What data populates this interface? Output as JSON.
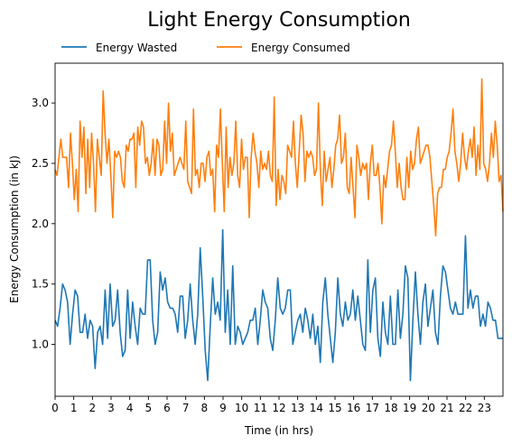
{
  "chart_data": {
    "type": "line",
    "title": "Light Energy Consumption",
    "xlabel": "Time (in hrs)",
    "ylabel": "Energy Consumption (in kJ)",
    "xlim": [
      0,
      24
    ],
    "ylim": [
      0.57,
      3.33
    ],
    "x_ticks": [
      0,
      1,
      2,
      3,
      4,
      5,
      6,
      7,
      8,
      9,
      10,
      11,
      12,
      13,
      14,
      15,
      16,
      17,
      18,
      19,
      20,
      21,
      22,
      23
    ],
    "y_ticks": [
      1.0,
      1.5,
      2.0,
      2.5,
      3.0
    ],
    "y_tick_labels": [
      "1.0",
      "1.5",
      "2.0",
      "2.5",
      "3.0"
    ],
    "grid": false,
    "legend_position": "top-left above plot",
    "series": [
      {
        "name": "Energy Wasted",
        "color": "#1f77b4",
        "values": [
          1.2,
          1.15,
          1.3,
          1.5,
          1.45,
          1.35,
          1.0,
          1.25,
          1.45,
          1.4,
          1.1,
          1.1,
          1.25,
          1.05,
          1.2,
          1.15,
          0.8,
          1.1,
          1.15,
          1.0,
          1.45,
          1.05,
          1.5,
          1.15,
          1.2,
          1.45,
          1.1,
          0.9,
          0.95,
          1.45,
          1.05,
          1.35,
          1.15,
          1.0,
          1.3,
          1.25,
          1.25,
          1.7,
          1.7,
          1.2,
          1.0,
          1.1,
          1.6,
          1.45,
          1.55,
          1.35,
          1.3,
          1.3,
          1.25,
          1.1,
          1.4,
          1.4,
          1.05,
          1.2,
          1.5,
          1.2,
          1.0,
          1.25,
          1.8,
          1.4,
          0.95,
          0.7,
          1.15,
          1.55,
          1.25,
          1.35,
          1.2,
          1.95,
          1.1,
          1.45,
          1.0,
          1.65,
          1.0,
          1.15,
          1.1,
          1.0,
          1.05,
          1.1,
          1.2,
          1.2,
          1.3,
          1.0,
          1.2,
          1.45,
          1.35,
          1.3,
          1.05,
          0.95,
          1.2,
          1.55,
          1.3,
          1.25,
          1.3,
          1.45,
          1.45,
          1.0,
          1.1,
          1.2,
          1.25,
          1.1,
          1.3,
          1.2,
          1.05,
          1.25,
          1.0,
          1.15,
          0.85,
          1.35,
          1.55,
          1.25,
          1.05,
          0.85,
          1.1,
          1.55,
          1.25,
          1.15,
          1.35,
          1.2,
          1.25,
          1.45,
          1.2,
          1.4,
          1.2,
          1.0,
          0.95,
          1.7,
          1.1,
          1.45,
          1.55,
          1.05,
          0.9,
          1.35,
          1.1,
          1.0,
          1.4,
          1.0,
          1.0,
          1.45,
          1.05,
          1.25,
          1.65,
          1.55,
          0.7,
          1.2,
          1.6,
          1.25,
          1.0,
          1.35,
          1.5,
          1.15,
          1.3,
          1.45,
          1.1,
          1.0,
          1.4,
          1.65,
          1.6,
          1.45,
          1.3,
          1.25,
          1.35,
          1.25,
          1.25,
          1.25,
          1.9,
          1.3,
          1.45,
          1.3,
          1.4,
          1.4,
          1.15,
          1.25,
          1.15,
          1.35,
          1.3,
          1.2,
          1.2,
          1.05,
          1.05,
          1.05
        ]
      },
      {
        "name": "Energy Consumed",
        "color": "#ff7f0e",
        "values": [
          2.45,
          2.4,
          2.55,
          2.7,
          2.55,
          2.55,
          2.55,
          2.3,
          2.75,
          2.5,
          2.2,
          2.45,
          2.1,
          2.85,
          2.55,
          2.8,
          2.25,
          2.7,
          2.3,
          2.75,
          2.5,
          2.1,
          2.7,
          2.55,
          2.4,
          3.1,
          2.75,
          2.5,
          2.7,
          2.4,
          2.05,
          2.6,
          2.55,
          2.6,
          2.55,
          2.35,
          2.3,
          2.65,
          2.6,
          2.7,
          2.7,
          2.75,
          2.3,
          2.8,
          2.65,
          2.85,
          2.8,
          2.5,
          2.55,
          2.4,
          2.5,
          2.7,
          2.4,
          2.7,
          2.65,
          2.4,
          2.45,
          2.85,
          2.5,
          3.0,
          2.6,
          2.75,
          2.4,
          2.45,
          2.5,
          2.55,
          2.5,
          2.45,
          2.85,
          2.35,
          2.3,
          2.25,
          2.95,
          2.4,
          2.45,
          2.3,
          2.5,
          2.5,
          2.35,
          2.55,
          2.6,
          2.4,
          2.45,
          2.1,
          2.65,
          2.55,
          2.95,
          2.5,
          2.1,
          2.8,
          2.3,
          2.55,
          2.4,
          2.5,
          2.85,
          2.4,
          2.3,
          2.7,
          2.45,
          2.55,
          2.55,
          2.05,
          2.55,
          2.75,
          2.6,
          2.5,
          2.3,
          2.6,
          2.45,
          2.5,
          2.45,
          2.6,
          2.4,
          2.35,
          3.05,
          2.15,
          2.45,
          2.2,
          2.4,
          2.35,
          2.25,
          2.65,
          2.6,
          2.55,
          2.85,
          2.5,
          2.3,
          2.6,
          2.9,
          2.75,
          2.35,
          2.6,
          2.55,
          2.6,
          2.55,
          2.4,
          2.45,
          3.0,
          2.45,
          2.15,
          2.6,
          2.35,
          2.45,
          2.55,
          2.3,
          2.45,
          2.65,
          2.7,
          2.9,
          2.5,
          2.55,
          2.75,
          2.3,
          2.25,
          2.55,
          2.3,
          2.05,
          2.65,
          2.55,
          2.4,
          2.5,
          2.45,
          2.5,
          2.2,
          2.5,
          2.65,
          2.4,
          2.4,
          2.5,
          2.3,
          2.0,
          2.4,
          2.3,
          2.45,
          2.6,
          2.65,
          2.85,
          2.6,
          2.3,
          2.5,
          2.3,
          2.2,
          2.2,
          2.55,
          2.3,
          2.6,
          2.45,
          2.5,
          2.7,
          2.8,
          2.5,
          2.55,
          2.6,
          2.65,
          2.65,
          2.55,
          2.35,
          2.15,
          1.9,
          2.25,
          2.3,
          2.3,
          2.45,
          2.45,
          2.55,
          2.6,
          2.75,
          2.95,
          2.6,
          2.5,
          2.35,
          2.5,
          2.75,
          2.55,
          2.45,
          2.6,
          2.7,
          2.55,
          2.8,
          2.4,
          2.65,
          2.45,
          3.2,
          2.5,
          2.45,
          2.35,
          2.5,
          2.75,
          2.55,
          2.85,
          2.65,
          2.35,
          2.4,
          2.1
        ]
      }
    ]
  }
}
